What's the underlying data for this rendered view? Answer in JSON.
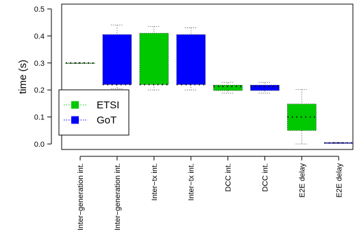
{
  "chart_data": {
    "type": "boxplot",
    "ylabel": "time (s)",
    "ylim": [
      0,
      0.5
    ],
    "yticks": [
      "0.0",
      "0.1",
      "0.2",
      "0.3",
      "0.4",
      "0.5"
    ],
    "legend": {
      "placement": "left",
      "entries": [
        {
          "label": "ETSI",
          "color": "#00c800"
        },
        {
          "label": "GoT",
          "color": "#0000ff"
        }
      ]
    },
    "categories": [
      "Inter−generation int.",
      "Inter−generation int.",
      "Inter−tx int.",
      "Inter−tx int.",
      "DCC int.",
      "DCC int.",
      "E2E delay",
      "E2E delay"
    ],
    "boxes": [
      {
        "group": "ETSI",
        "color": "#00c800",
        "whisker_low": 0.3,
        "q1": 0.3,
        "median": 0.3,
        "q3": 0.3,
        "whisker_high": 0.3
      },
      {
        "group": "GoT",
        "color": "#0000ff",
        "whisker_low": 0.205,
        "q1": 0.22,
        "median": 0.22,
        "q3": 0.405,
        "whisker_high": 0.44
      },
      {
        "group": "ETSI",
        "color": "#00c800",
        "whisker_low": 0.2,
        "q1": 0.22,
        "median": 0.22,
        "q3": 0.41,
        "whisker_high": 0.435
      },
      {
        "group": "GoT",
        "color": "#0000ff",
        "whisker_low": 0.2,
        "q1": 0.22,
        "median": 0.22,
        "q3": 0.405,
        "whisker_high": 0.43
      },
      {
        "group": "ETSI",
        "color": "#00c800",
        "whisker_low": 0.188,
        "q1": 0.198,
        "median": 0.213,
        "q3": 0.218,
        "whisker_high": 0.228
      },
      {
        "group": "GoT",
        "color": "#0000ff",
        "whisker_low": 0.188,
        "q1": 0.198,
        "median": 0.213,
        "q3": 0.218,
        "whisker_high": 0.228
      },
      {
        "group": "ETSI",
        "color": "#00c800",
        "whisker_low": 0.0,
        "q1": 0.05,
        "median": 0.1,
        "q3": 0.148,
        "whisker_high": 0.202
      },
      {
        "group": "GoT",
        "color": "#0000ff",
        "whisker_low": 0.002,
        "q1": 0.002,
        "median": 0.004,
        "q3": 0.005,
        "whisker_high": 0.006
      }
    ]
  }
}
